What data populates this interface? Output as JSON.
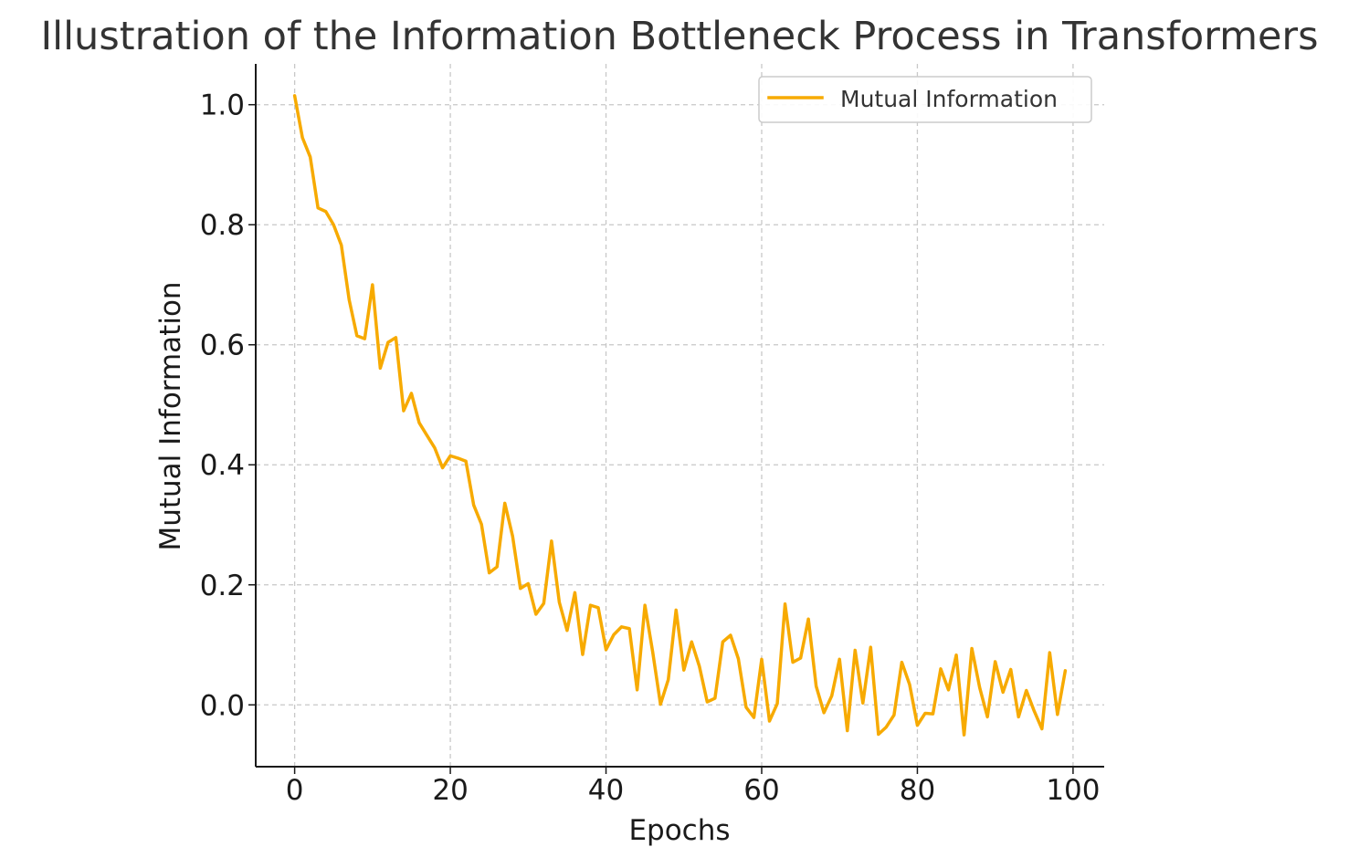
{
  "chart_data": {
    "type": "line",
    "title": "Illustration of the Information Bottleneck Process in Transformers",
    "xlabel": "Epochs",
    "ylabel": "Mutual Information",
    "xlim": [
      -5,
      104
    ],
    "ylim": [
      -0.103,
      1.068
    ],
    "xticks": [
      0,
      20,
      40,
      60,
      80,
      100
    ],
    "yticks": [
      0.0,
      0.2,
      0.4,
      0.6,
      0.8,
      1.0
    ],
    "xtick_labels": [
      "0",
      "20",
      "40",
      "60",
      "80",
      "100"
    ],
    "ytick_labels": [
      "0.0",
      "0.2",
      "0.4",
      "0.6",
      "0.8",
      "1.0"
    ],
    "grid": true,
    "legend_position": "top-right",
    "series": [
      {
        "name": "Mutual Information",
        "color": "#f7aa00",
        "x": [
          0,
          1,
          2,
          3,
          4,
          5,
          6,
          7,
          8,
          9,
          10,
          11,
          12,
          13,
          14,
          15,
          16,
          17,
          18,
          19,
          20,
          21,
          22,
          23,
          24,
          25,
          26,
          27,
          28,
          29,
          30,
          31,
          32,
          33,
          34,
          35,
          36,
          37,
          38,
          39,
          40,
          41,
          42,
          43,
          44,
          45,
          46,
          47,
          48,
          49,
          50,
          51,
          52,
          53,
          54,
          55,
          56,
          57,
          58,
          59,
          60,
          61,
          62,
          63,
          64,
          65,
          66,
          67,
          68,
          69,
          70,
          71,
          72,
          73,
          74,
          75,
          76,
          77,
          78,
          79,
          80,
          81,
          82,
          83,
          84,
          85,
          86,
          87,
          88,
          89,
          90,
          91,
          92,
          93,
          94,
          95,
          96,
          97,
          98,
          99
        ],
        "values": [
          1.015,
          0.945,
          0.913,
          0.828,
          0.822,
          0.8,
          0.766,
          0.675,
          0.615,
          0.61,
          0.7,
          0.561,
          0.604,
          0.612,
          0.49,
          0.519,
          0.47,
          0.449,
          0.428,
          0.395,
          0.415,
          0.411,
          0.406,
          0.333,
          0.301,
          0.22,
          0.23,
          0.336,
          0.281,
          0.194,
          0.202,
          0.151,
          0.169,
          0.273,
          0.171,
          0.124,
          0.187,
          0.084,
          0.166,
          0.162,
          0.092,
          0.117,
          0.13,
          0.127,
          0.025,
          0.166,
          0.088,
          0.001,
          0.042,
          0.158,
          0.058,
          0.105,
          0.064,
          0.005,
          0.011,
          0.105,
          0.116,
          0.077,
          -0.004,
          -0.021,
          0.076,
          -0.027,
          0.002,
          0.168,
          0.071,
          0.078,
          0.143,
          0.031,
          -0.013,
          0.015,
          0.076,
          -0.043,
          0.091,
          0.003,
          0.096,
          -0.049,
          -0.037,
          -0.017,
          0.071,
          0.034,
          -0.034,
          -0.014,
          -0.015,
          0.06,
          0.025,
          0.083,
          -0.05,
          0.094,
          0.029,
          -0.02,
          0.072,
          0.021,
          0.059,
          -0.02,
          0.024,
          -0.01,
          -0.04,
          0.087,
          -0.016,
          0.057
        ]
      }
    ]
  }
}
